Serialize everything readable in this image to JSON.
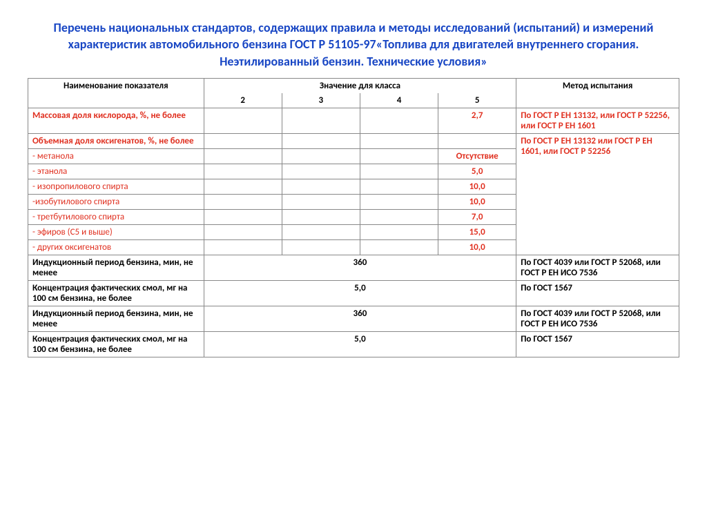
{
  "title": "Перечень национальных стандартов, содержащих правила и методы исследований (испытаний) и измерений характеристик автомобильного бензина ГОСТ Р 51105-97«Топлива для двигателей внутреннего сгорания. Неэтилированный бензин. Технические условия»",
  "colors": {
    "title": "#1846c4",
    "highlight": "#e03020",
    "border": "#888888",
    "text": "#000000",
    "background": "#ffffff"
  },
  "font": {
    "family": "Calibri",
    "title_size_pt": 18,
    "body_size_pt": 13
  },
  "header": {
    "name": "Наименование показателя",
    "value_group": "Значение для класса",
    "classes": [
      "2",
      "3",
      "4",
      "5"
    ],
    "method": "Метод испытания"
  },
  "rows": [
    {
      "name": "Массовая доля кислорода, %, не более",
      "red": true,
      "bold": true,
      "v": [
        "",
        "",
        "",
        "2,7"
      ],
      "method": "По ГОСТ Р ЕН 13132, или ГОСТ Р 52256, или ГОСТ Р ЕН 1601",
      "method_red": true
    },
    {
      "name": "Объемная доля оксигенатов, %, не более",
      "red": true,
      "bold": true,
      "v": [
        "",
        "",
        "",
        ""
      ],
      "method": "По ГОСТ Р ЕН 13132 или ГОСТ Р ЕН 1601, или ГОСТ Р 52256",
      "method_red": true,
      "method_rowspan": 8
    },
    {
      "name": "- метанола",
      "red": true,
      "v": [
        "",
        "",
        "",
        "Отсутствие"
      ]
    },
    {
      "name": "- этанола",
      "red": true,
      "v": [
        "",
        "",
        "",
        "5,0"
      ]
    },
    {
      "name": "- изопропилового спирта",
      "red": true,
      "v": [
        "",
        "",
        "",
        "10,0"
      ]
    },
    {
      "name": "-изобутилового спирта",
      "red": true,
      "v": [
        "",
        "",
        "",
        "10,0"
      ]
    },
    {
      "name": "- третбутилового спирта",
      "red": true,
      "v": [
        "",
        "",
        "",
        "7,0"
      ]
    },
    {
      "name": "- эфиров (С5 и выше)",
      "red": true,
      "v": [
        "",
        "",
        "",
        "15,0"
      ]
    },
    {
      "name": "- других оксигенатов",
      "red": true,
      "v": [
        "",
        "",
        "",
        "10,0"
      ]
    },
    {
      "name": "Индукционный период бензина, мин, не менее",
      "bold": true,
      "merged_value": "360",
      "method": "По ГОСТ 4039 или ГОСТ Р 52068, или ГОСТ Р ЕН ИСО 7536"
    },
    {
      "name": "Концентрация фактических смол, мг на 100 см бензина, не более",
      "bold": true,
      "merged_value": "5,0",
      "method": "По ГОСТ 1567"
    },
    {
      "name": "Индукционный период бензина, мин, не менее",
      "bold": true,
      "merged_value": "360",
      "method": "По ГОСТ 4039 или ГОСТ Р 52068, или ГОСТ Р ЕН ИСО 7536"
    },
    {
      "name": "Концентрация фактических смол, мг на 100 см бензина, не более",
      "bold": true,
      "merged_value": "5,0",
      "method": "По ГОСТ 1567"
    }
  ]
}
